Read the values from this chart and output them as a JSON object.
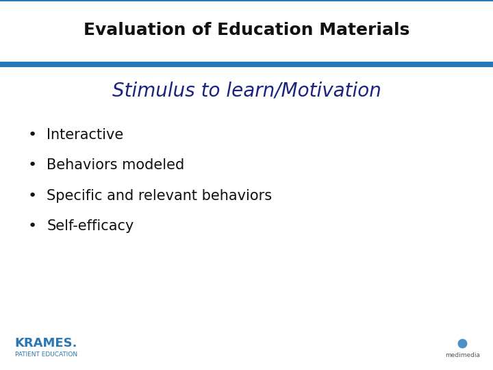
{
  "title": "Evaluation of Education Materials",
  "title_color": "#111111",
  "title_fontsize": 18,
  "title_fontweight": "bold",
  "subtitle": "Stimulus to learn/Motivation",
  "subtitle_color": "#1a237e",
  "subtitle_fontsize": 20,
  "bullet_items": [
    "Interactive",
    "Behaviors modeled",
    "Specific and relevant behaviors",
    "Self-efficacy"
  ],
  "bullet_color": "#111111",
  "bullet_fontsize": 15,
  "slide_background": "#ffffff",
  "blue_bar_color": "#2878b5",
  "krames_color": "#2878b5",
  "krames_text": "KRAMES.",
  "krames_sub": "PATIENT EDUCATION",
  "medimedia_text": "medimedia"
}
